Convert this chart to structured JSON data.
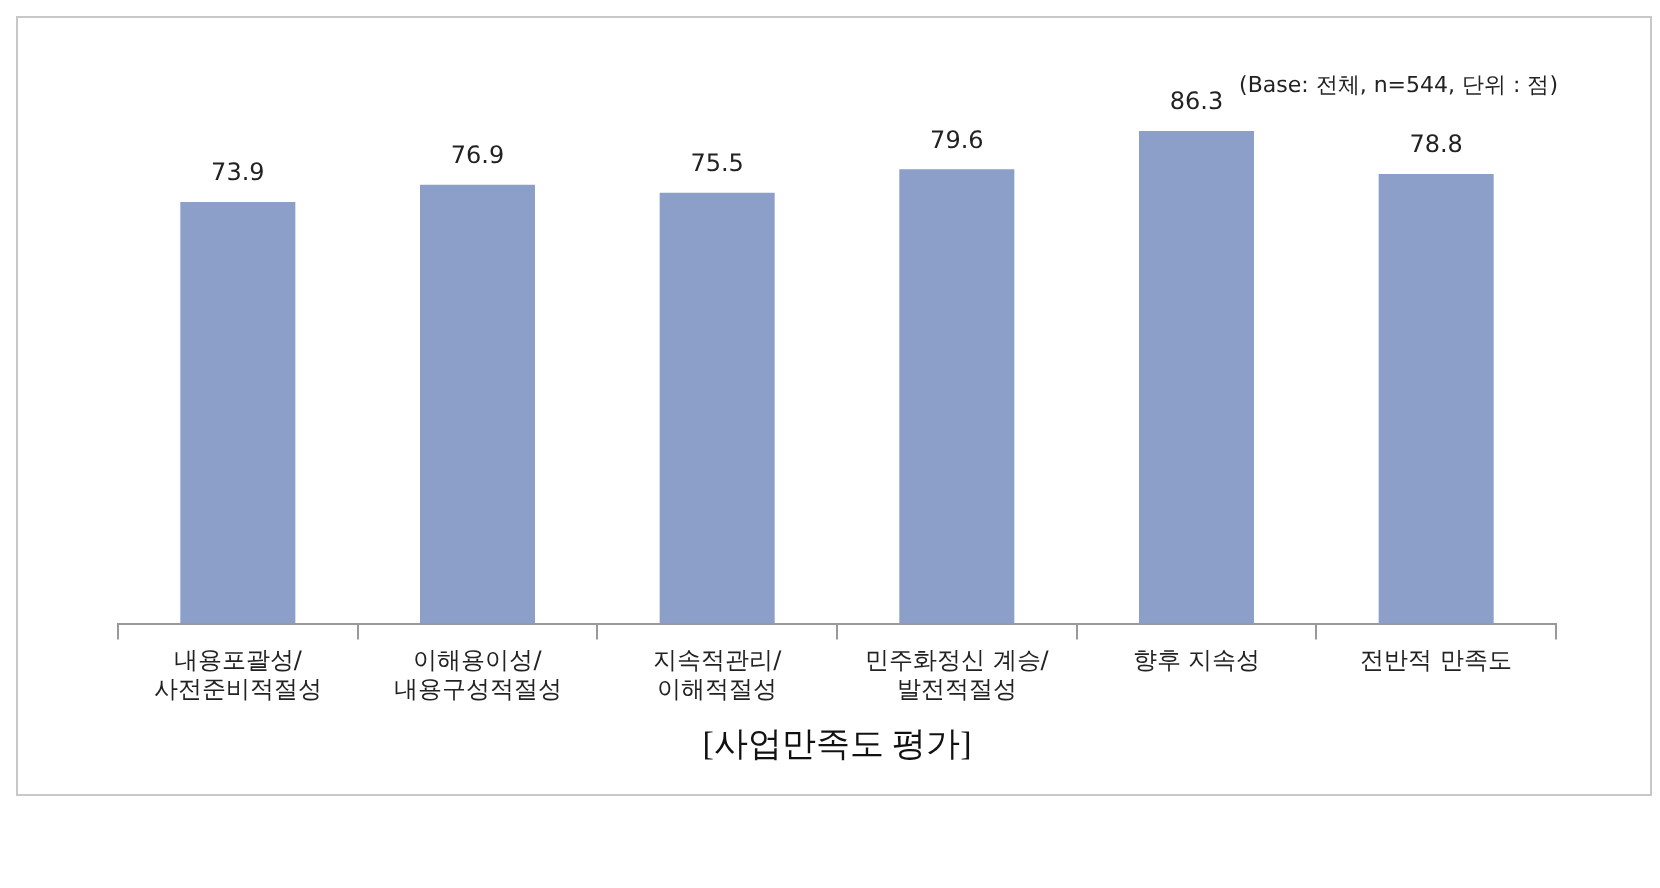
{
  "chart_data": {
    "type": "bar",
    "title": "[사업만족도 평가]",
    "annotations": [
      "(Base: 전체, n=544, 단위 : 점)"
    ],
    "categories": [
      "내용포괄성/\n사전준비적절성",
      "이해용이성/\n내용구성적절성",
      "지속적관리/\n이해적절성",
      "민주화정신 계승/\n발전적절성",
      "향후 지속성",
      "전반적 만족도"
    ],
    "values": [
      73.9,
      76.9,
      75.5,
      79.6,
      86.3,
      78.8
    ],
    "color": "#8c9fc9",
    "data_labels": true,
    "grid": false,
    "legend": false
  }
}
